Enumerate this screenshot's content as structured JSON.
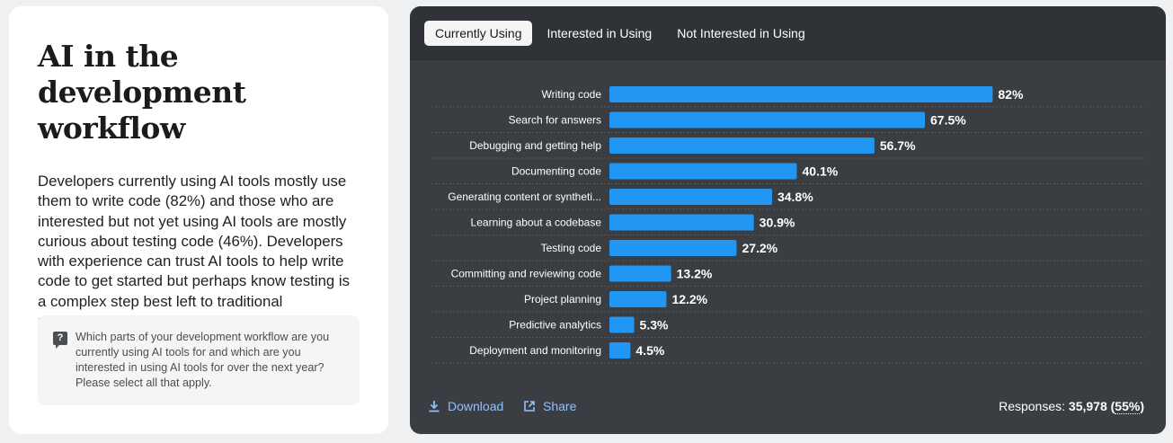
{
  "left": {
    "title": "AI in the development workflow",
    "summary": "Developers currently using AI tools mostly use them to write code (82%) and those who are interested but not yet using AI tools are mostly curious about testing code (46%). Developers with experience can trust AI tools to help write code to get started but perhaps know testing is a complex step best left to traditional processes.",
    "question": "Which parts of your development workflow are you currently using AI tools for and which are you interested in using AI tools for over the next year? Please select all that apply."
  },
  "tabs": [
    {
      "label": "Currently Using",
      "active": true
    },
    {
      "label": "Interested in Using",
      "active": false
    },
    {
      "label": "Not Interested in Using",
      "active": false
    }
  ],
  "footer": {
    "download_label": "Download",
    "share_label": "Share",
    "responses_label": "Responses:",
    "responses_count": "35,978",
    "responses_pct": "55%"
  },
  "colors": {
    "bar": "#2196f3",
    "panel_bg": "#3a3d41",
    "header_bg": "#2f3236",
    "link": "#8fc1ff"
  },
  "chart_data": {
    "type": "bar",
    "orientation": "horizontal",
    "categories": [
      "Writing code",
      "Search for answers",
      "Debugging and getting help",
      "Documenting code",
      "Generating content or syntheti...",
      "Learning about a codebase",
      "Testing code",
      "Committing and reviewing code",
      "Project planning",
      "Predictive analytics",
      "Deployment and monitoring"
    ],
    "values": [
      82,
      67.5,
      56.7,
      40.1,
      34.8,
      30.9,
      27.2,
      13.2,
      12.2,
      5.3,
      4.5
    ],
    "value_labels": [
      "82%",
      "67.5%",
      "56.7%",
      "40.1%",
      "34.8%",
      "30.9%",
      "27.2%",
      "13.2%",
      "12.2%",
      "5.3%",
      "4.5%"
    ],
    "xlim": [
      0,
      100
    ],
    "grid": false,
    "legend": "none"
  }
}
